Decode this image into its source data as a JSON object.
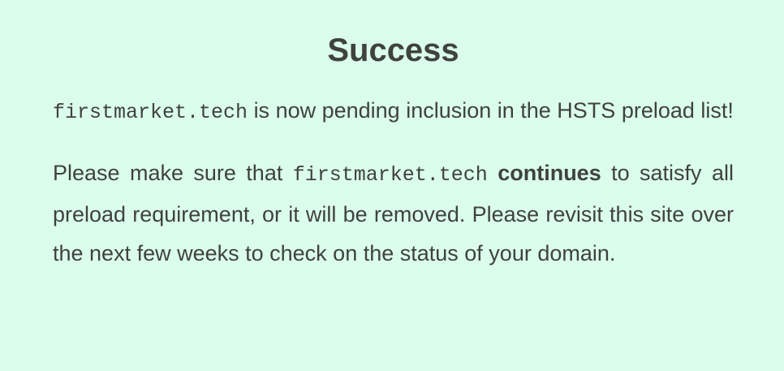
{
  "title": "Success",
  "message1": {
    "domain": "firstmarket.tech",
    "text": "is now pending inclusion in the HSTS preload list!"
  },
  "message2": {
    "prefix": "Please make sure that",
    "domain": "firstmarket.tech",
    "emphasis": "continues",
    "suffix": "to satisfy all preload requirement, or it will be removed. Please revisit this site over the next few weeks to check on the status of your domain."
  }
}
